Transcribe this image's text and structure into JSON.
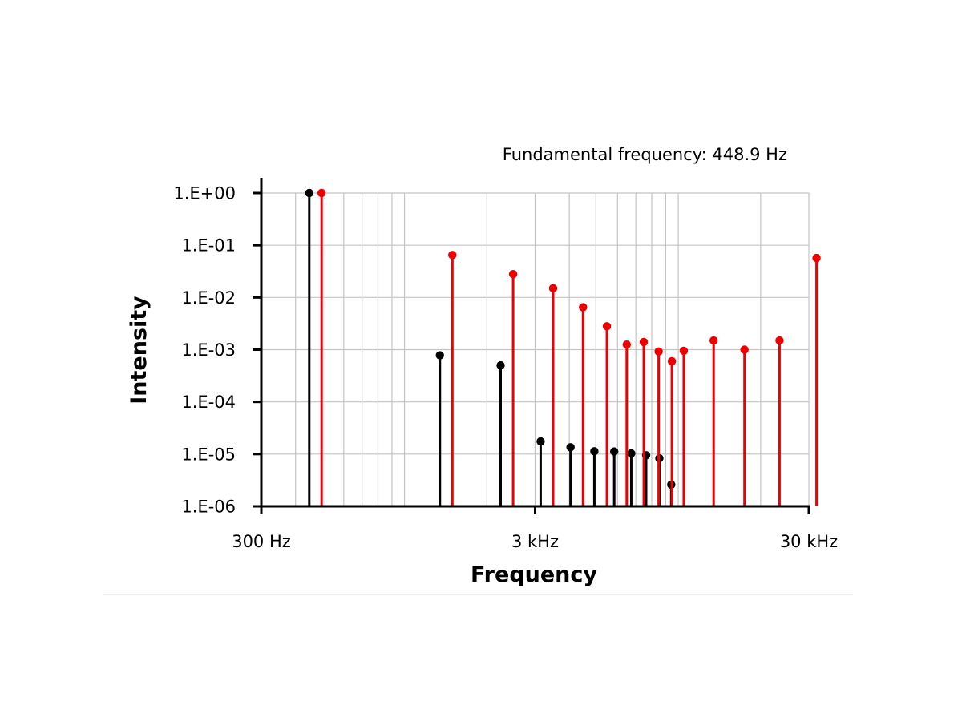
{
  "colors": {
    "odd": "#ee0000",
    "even": "#000000",
    "grid": "#c4c4c4",
    "axis": "#000000"
  },
  "chart_data": {
    "type": "scatter",
    "title": "",
    "annotation": "Fundamental frequency: 448.9 Hz",
    "xlabel": "Frequency",
    "ylabel": "Intensity",
    "x_scale": "log",
    "y_scale": "log",
    "xlim": [
      300,
      30000
    ],
    "ylim": [
      1e-06,
      1
    ],
    "x_ticks": [
      {
        "value": 300,
        "label": "300 Hz"
      },
      {
        "value": 3000,
        "label": "3 kHz"
      },
      {
        "value": 30000,
        "label": "30 kHz"
      }
    ],
    "y_ticks": [
      {
        "value": 1,
        "label": "1.E+00"
      },
      {
        "value": 0.1,
        "label": "1.E-01"
      },
      {
        "value": 0.01,
        "label": "1.E-02"
      },
      {
        "value": 0.001,
        "label": "1.E-03"
      },
      {
        "value": 0.0001,
        "label": "1.E-04"
      },
      {
        "value": 1e-05,
        "label": "1.E-05"
      },
      {
        "value": 1e-06,
        "label": "1.E-06"
      }
    ],
    "grid": true,
    "series": [
      {
        "color": "#000000",
        "points": [
          {
            "x": 449,
            "y": 1.0
          },
          {
            "x": 1347,
            "y": 0.00078
          },
          {
            "x": 2245,
            "y": 0.0005
          },
          {
            "x": 3143,
            "y": 1.75e-05
          },
          {
            "x": 4041,
            "y": 1.35e-05
          },
          {
            "x": 4938,
            "y": 1.13e-05
          },
          {
            "x": 5836,
            "y": 1.12e-05
          },
          {
            "x": 6734,
            "y": 1.03e-05
          },
          {
            "x": 7632,
            "y": 9.5e-06
          },
          {
            "x": 8530,
            "y": 8.3e-06
          },
          {
            "x": 9428,
            "y": 2.6e-06
          }
        ]
      },
      {
        "color": "#ee0000",
        "points": [
          {
            "x": 498,
            "y": 1.0
          },
          {
            "x": 1496,
            "y": 0.065
          },
          {
            "x": 2494,
            "y": 0.028
          },
          {
            "x": 3491,
            "y": 0.015
          },
          {
            "x": 4489,
            "y": 0.0065
          },
          {
            "x": 5487,
            "y": 0.0028
          },
          {
            "x": 6484,
            "y": 0.00125
          },
          {
            "x": 7482,
            "y": 0.0014
          },
          {
            "x": 8480,
            "y": 0.00092
          },
          {
            "x": 9477,
            "y": 0.0006
          },
          {
            "x": 10475,
            "y": 0.00095
          },
          {
            "x": 13467,
            "y": 0.0015
          },
          {
            "x": 17457,
            "y": 0.001
          },
          {
            "x": 23444,
            "y": 0.0015
          },
          {
            "x": 32000,
            "y": 0.057
          }
        ]
      }
    ]
  }
}
